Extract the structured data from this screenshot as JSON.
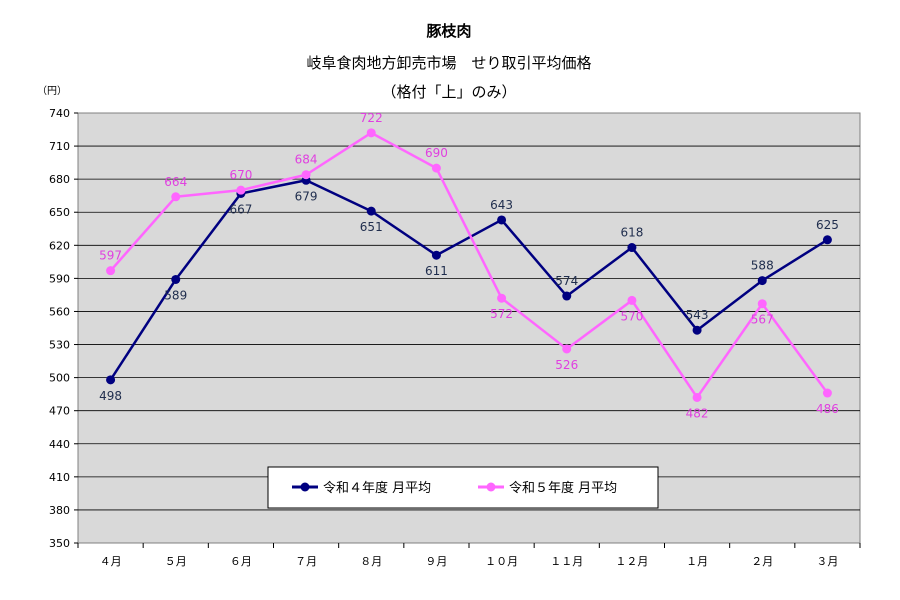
{
  "chart_data": {
    "type": "line",
    "title": "豚枝肉",
    "subtitle": "岐阜食肉地方卸売市場　せり取引平均価格",
    "subtitle2": "（格付「上」のみ）",
    "ylabel": "（円）",
    "xlabel": "",
    "categories": [
      "４月",
      "５月",
      "６月",
      "７月",
      "８月",
      "９月",
      "１０月",
      "１１月",
      "１２月",
      "１月",
      "２月",
      "３月"
    ],
    "ylim": [
      350,
      740
    ],
    "ytick_step": 30,
    "grid": true,
    "legend_position": "bottom-center",
    "series": [
      {
        "name": "令和４年度 月平均",
        "color": "#000080",
        "values": [
          498,
          589,
          667,
          679,
          651,
          611,
          643,
          574,
          618,
          543,
          588,
          625
        ],
        "labels": [
          "498",
          "589",
          "667",
          "679",
          "651",
          "611",
          "643",
          "574",
          "618",
          "543",
          "588",
          "625"
        ]
      },
      {
        "name": "令和５年度 月平均",
        "color": "#FF66FF",
        "values": [
          597,
          664,
          670,
          684,
          722,
          690,
          572,
          526,
          570,
          482,
          567,
          486
        ],
        "labels": [
          "597",
          "664",
          "670",
          "684",
          "722",
          "690",
          "572",
          "526",
          "570",
          "482",
          "567",
          "486"
        ]
      }
    ],
    "plot_background": "#D9D9D9"
  }
}
